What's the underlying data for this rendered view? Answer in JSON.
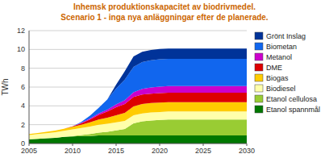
{
  "chart_data": {
    "type": "area",
    "stacked": true,
    "title": "Inhemsk produktionskapacitet av biodrivmedel.",
    "subtitle": "Scenario 1 - inga nya anläggningar efter de planerade.",
    "y_label": "TWh",
    "x": [
      2005,
      2006,
      2007,
      2008,
      2009,
      2010,
      2011,
      2012,
      2013,
      2014,
      2015,
      2016,
      2017,
      2018,
      2019,
      2020,
      2021,
      2022,
      2023,
      2024,
      2025,
      2026,
      2027,
      2028,
      2029,
      2030
    ],
    "xlim": [
      2005,
      2030
    ],
    "ylim": [
      0,
      12
    ],
    "xticks": [
      2005,
      2010,
      2015,
      2020,
      2025,
      2030
    ],
    "yticks": [
      0,
      2,
      4,
      6,
      8,
      10,
      12
    ],
    "grid": true,
    "legend": "right",
    "series": [
      {
        "name": "Etanol spannmål",
        "color": "#007700",
        "values": [
          0.45,
          0.5,
          0.55,
          0.6,
          0.7,
          0.75,
          0.8,
          0.8,
          0.85,
          0.85,
          0.85,
          0.85,
          0.85,
          0.85,
          0.85,
          0.85,
          0.85,
          0.85,
          0.85,
          0.85,
          0.85,
          0.85,
          0.85,
          0.85,
          0.85,
          0.85
        ]
      },
      {
        "name": "Etanol cellulosa",
        "color": "#99cc33",
        "values": [
          0.0,
          0.0,
          0.0,
          0.0,
          0.0,
          0.05,
          0.1,
          0.2,
          0.3,
          0.4,
          0.55,
          0.7,
          1.3,
          1.5,
          1.6,
          1.65,
          1.7,
          1.7,
          1.7,
          1.7,
          1.7,
          1.7,
          1.7,
          1.7,
          1.7,
          1.7
        ]
      },
      {
        "name": "Biodiesel",
        "color": "#ffffaa",
        "values": [
          0.45,
          0.5,
          0.55,
          0.6,
          0.65,
          0.7,
          0.75,
          0.8,
          0.85,
          0.85,
          0.85,
          0.85,
          0.85,
          0.85,
          0.85,
          0.85,
          0.85,
          0.85,
          0.85,
          0.85,
          0.85,
          0.85,
          0.85,
          0.85,
          0.85,
          0.85
        ]
      },
      {
        "name": "Biogas",
        "color": "#ffcc00",
        "values": [
          0.1,
          0.12,
          0.15,
          0.18,
          0.22,
          0.28,
          0.35,
          0.45,
          0.55,
          0.65,
          0.75,
          0.85,
          0.95,
          1.0,
          1.0,
          1.0,
          1.0,
          1.0,
          1.0,
          1.0,
          1.0,
          1.0,
          1.0,
          1.0,
          1.0,
          1.0
        ]
      },
      {
        "name": "DME",
        "color": "#dd0000",
        "values": [
          0.0,
          0.0,
          0.0,
          0.0,
          0.0,
          0.05,
          0.15,
          0.3,
          0.5,
          0.65,
          0.85,
          0.95,
          1.0,
          1.0,
          1.0,
          1.0,
          1.0,
          1.0,
          1.0,
          1.0,
          1.0,
          1.0,
          1.0,
          1.0,
          1.0,
          1.0
        ]
      },
      {
        "name": "Metanol",
        "color": "#cc00cc",
        "values": [
          0.0,
          0.0,
          0.0,
          0.0,
          0.0,
          0.0,
          0.05,
          0.1,
          0.15,
          0.2,
          0.3,
          0.4,
          0.5,
          0.6,
          0.65,
          0.7,
          0.7,
          0.7,
          0.7,
          0.7,
          0.7,
          0.7,
          0.7,
          0.7,
          0.7,
          0.7
        ]
      },
      {
        "name": "Biometan",
        "color": "#1166ee",
        "values": [
          0.0,
          0.0,
          0.0,
          0.0,
          0.0,
          0.0,
          0.1,
          0.3,
          0.6,
          1.1,
          1.7,
          2.2,
          2.7,
          2.85,
          2.9,
          2.9,
          2.9,
          2.9,
          2.9,
          2.9,
          2.9,
          2.9,
          2.9,
          2.9,
          2.9,
          2.9
        ]
      },
      {
        "name": "Grönt Inslag",
        "color": "#003399",
        "values": [
          0.0,
          0.0,
          0.0,
          0.0,
          0.0,
          0.0,
          0.0,
          0.0,
          0.0,
          0.0,
          0.4,
          0.9,
          1.1,
          1.1,
          1.1,
          1.1,
          1.1,
          1.1,
          1.1,
          1.1,
          1.1,
          1.1,
          1.1,
          1.1,
          1.1,
          1.1
        ]
      }
    ]
  }
}
